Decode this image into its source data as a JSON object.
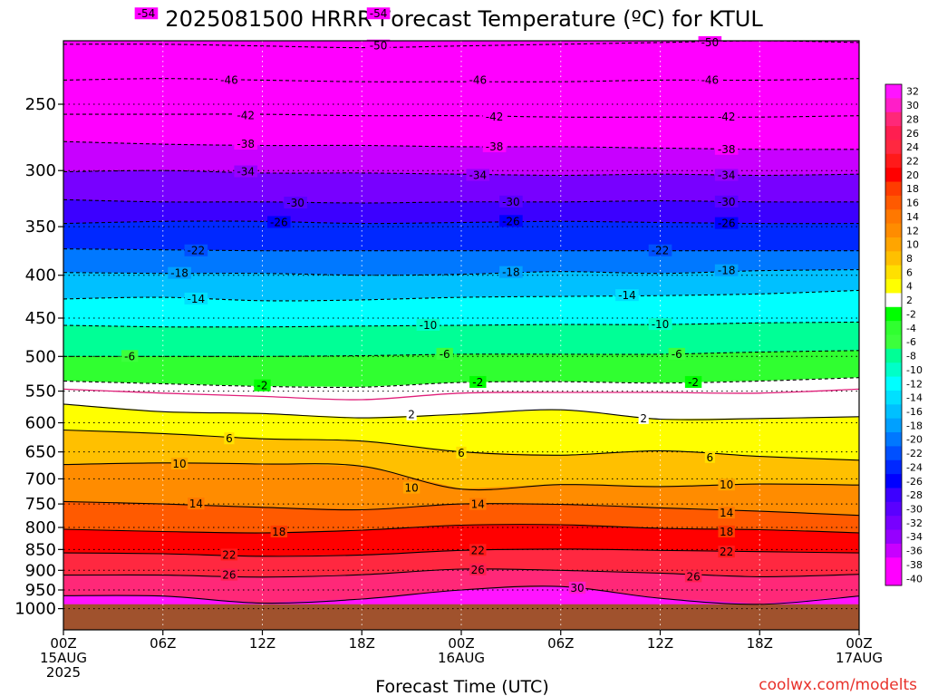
{
  "title": "2025081500 HRRR Forecast Temperature (ºC) for KTUL",
  "credit": "coolwx.com/modelts",
  "colors": {
    "credit": "#e8322b",
    "ground": "#a0522d",
    "freezing_line": "#e0207a"
  },
  "chart_data": {
    "type": "heatmap",
    "title": "2025081500 HRRR Forecast Temperature (ºC) for KTUL",
    "xlabel": "Forecast Time (UTC)",
    "ylabel": "",
    "x_hours": [
      0,
      6,
      12,
      18,
      24,
      30,
      36,
      42,
      48
    ],
    "x_tick_labels": [
      {
        "h": 0,
        "lines": [
          "00Z",
          "15AUG",
          "2025"
        ]
      },
      {
        "h": 6,
        "lines": [
          "06Z"
        ]
      },
      {
        "h": 12,
        "lines": [
          "12Z"
        ]
      },
      {
        "h": 18,
        "lines": [
          "18Z"
        ]
      },
      {
        "h": 24,
        "lines": [
          "00Z",
          "16AUG"
        ]
      },
      {
        "h": 30,
        "lines": [
          "06Z"
        ]
      },
      {
        "h": 36,
        "lines": [
          "12Z"
        ]
      },
      {
        "h": 42,
        "lines": [
          "18Z"
        ]
      },
      {
        "h": 48,
        "lines": [
          "00Z",
          "17AUG"
        ]
      }
    ],
    "y_pressure_hPa": [
      250,
      300,
      350,
      400,
      450,
      500,
      550,
      600,
      650,
      700,
      750,
      800,
      850,
      900,
      950,
      1000
    ],
    "y_axis_log": true,
    "surface_pressure_hPa": 988,
    "temperature_levels": [
      {
        "t": -54,
        "p": [
          195,
          195,
          195,
          195,
          195,
          195,
          195,
          195,
          195
        ]
      },
      {
        "t": -50,
        "p": [
          212,
          212,
          213,
          214,
          213,
          212,
          211,
          210,
          211
        ]
      },
      {
        "t": -46,
        "p": [
          234,
          233,
          234,
          235,
          235,
          235,
          234,
          234,
          233
        ]
      },
      {
        "t": -42,
        "p": [
          257,
          257,
          257,
          258,
          258,
          259,
          259,
          259,
          258
        ]
      },
      {
        "t": -38,
        "p": [
          277,
          279,
          280,
          280,
          281,
          281,
          282,
          283,
          283
        ]
      },
      {
        "t": -34,
        "p": [
          301,
          300,
          302,
          302,
          303,
          304,
          303,
          304,
          303
        ]
      },
      {
        "t": -30,
        "p": [
          325,
          327,
          327,
          328,
          327,
          327,
          326,
          327,
          327
        ]
      },
      {
        "t": -26,
        "p": [
          347,
          345,
          345,
          347,
          346,
          345,
          346,
          347,
          347
        ]
      },
      {
        "t": -22,
        "p": [
          372,
          373,
          374,
          374,
          374,
          374,
          374,
          374,
          374
        ]
      },
      {
        "t": -18,
        "p": [
          397,
          398,
          398,
          400,
          399,
          396,
          398,
          395,
          394
        ]
      },
      {
        "t": -14,
        "p": [
          427,
          425,
          429,
          428,
          425,
          424,
          423,
          421,
          417
        ]
      },
      {
        "t": -10,
        "p": [
          459,
          461,
          461,
          460,
          459,
          458,
          458,
          456,
          455
        ]
      },
      {
        "t": -6,
        "p": [
          500,
          500,
          500,
          499,
          497,
          497,
          497,
          494,
          492
        ]
      },
      {
        "t": -2,
        "p": [
          535,
          539,
          543,
          544,
          537,
          536,
          538,
          535,
          530
        ]
      },
      {
        "t": 2,
        "p": [
          570,
          582,
          585,
          592,
          586,
          579,
          594,
          593,
          590
        ]
      },
      {
        "t": 6,
        "p": [
          612,
          618,
          627,
          631,
          650,
          656,
          648,
          658,
          665
        ]
      },
      {
        "t": 10,
        "p": [
          673,
          670,
          672,
          676,
          720,
          711,
          715,
          710,
          712
        ]
      },
      {
        "t": 14,
        "p": [
          745,
          750,
          757,
          762,
          750,
          751,
          758,
          765,
          774
        ]
      },
      {
        "t": 18,
        "p": [
          804,
          809,
          812,
          806,
          795,
          794,
          802,
          805,
          812
        ]
      },
      {
        "t": 22,
        "p": [
          858,
          860,
          866,
          863,
          852,
          849,
          852,
          855,
          858
        ]
      },
      {
        "t": 26,
        "p": [
          912,
          912,
          917,
          911,
          897,
          900,
          907,
          916,
          910
        ]
      },
      {
        "t": 30,
        "p": [
          965,
          966,
          985,
          974,
          950,
          941,
          972,
          988,
          966
        ]
      },
      {
        "t": 34,
        "p": [
          988,
          988,
          988,
          988,
          988,
          988,
          988,
          988,
          988
        ]
      }
    ],
    "contour_labels": [
      {
        "t": -54,
        "at": [
          [
            5,
            195
          ],
          [
            19,
            195
          ]
        ]
      },
      {
        "t": -50,
        "at": [
          [
            19,
            213
          ],
          [
            39,
            211
          ]
        ]
      },
      {
        "t": -46,
        "at": [
          [
            10,
            234
          ],
          [
            25,
            234
          ],
          [
            39,
            234
          ]
        ]
      },
      {
        "t": -42,
        "at": [
          [
            11,
            258
          ],
          [
            26,
            259
          ],
          [
            40,
            259
          ]
        ]
      },
      {
        "t": -38,
        "at": [
          [
            11,
            279
          ],
          [
            26,
            281
          ],
          [
            40,
            283
          ]
        ]
      },
      {
        "t": -34,
        "at": [
          [
            11,
            301
          ],
          [
            25,
            304
          ],
          [
            40,
            304
          ]
        ]
      },
      {
        "t": -30,
        "at": [
          [
            14,
            328
          ],
          [
            27,
            327
          ],
          [
            40,
            327
          ]
        ]
      },
      {
        "t": -26,
        "at": [
          [
            13,
            346
          ],
          [
            27,
            345
          ],
          [
            40,
            347
          ]
        ]
      },
      {
        "t": -22,
        "at": [
          [
            8,
            374
          ],
          [
            36,
            374
          ]
        ]
      },
      {
        "t": -18,
        "at": [
          [
            7,
            398
          ],
          [
            27,
            397
          ],
          [
            40,
            395
          ]
        ]
      },
      {
        "t": -14,
        "at": [
          [
            8,
            427
          ],
          [
            34,
            423
          ]
        ]
      },
      {
        "t": -10,
        "at": [
          [
            22,
            459
          ],
          [
            36,
            458
          ]
        ]
      },
      {
        "t": -6,
        "at": [
          [
            4,
            500
          ],
          [
            23,
            497
          ],
          [
            37,
            497
          ]
        ]
      },
      {
        "t": -2,
        "at": [
          [
            12,
            542
          ],
          [
            25,
            537
          ],
          [
            38,
            537
          ]
        ]
      },
      {
        "t": 2,
        "at": [
          [
            21,
            587
          ],
          [
            35,
            593
          ]
        ]
      },
      {
        "t": 6,
        "at": [
          [
            10,
            627
          ],
          [
            24,
            652
          ],
          [
            39,
            660
          ]
        ]
      },
      {
        "t": 10,
        "at": [
          [
            7,
            672
          ],
          [
            21,
            718
          ],
          [
            40,
            712
          ]
        ]
      },
      {
        "t": 14,
        "at": [
          [
            8,
            750
          ],
          [
            25,
            751
          ],
          [
            40,
            769
          ]
        ]
      },
      {
        "t": 18,
        "at": [
          [
            13,
            810
          ],
          [
            40,
            810
          ]
        ]
      },
      {
        "t": 22,
        "at": [
          [
            10,
            863
          ],
          [
            25,
            852
          ],
          [
            40,
            856
          ]
        ]
      },
      {
        "t": 26,
        "at": [
          [
            10,
            912
          ],
          [
            25,
            899
          ],
          [
            38,
            916
          ]
        ]
      },
      {
        "t": 30,
        "at": [
          [
            31,
            945
          ]
        ]
      }
    ],
    "freezing_line_p": [
      547,
      553,
      558,
      563,
      553,
      552,
      552,
      553,
      547
    ],
    "colorbar_levels": [
      32,
      30,
      28,
      26,
      24,
      22,
      20,
      18,
      16,
      14,
      12,
      10,
      8,
      6,
      4,
      2,
      -2,
      -4,
      -6,
      -8,
      -10,
      -12,
      -14,
      -16,
      -18,
      -20,
      -22,
      -24,
      -26,
      -28,
      -30,
      -32,
      -34,
      -36,
      -38,
      -40
    ],
    "colorbar_colors": [
      "#ff14ff",
      "#ff1ec8",
      "#ff2878",
      "#ff1e50",
      "#ff2840",
      "#ff1a1a",
      "#ff0000",
      "#ff3c00",
      "#ff5a00",
      "#ff7800",
      "#ff8c00",
      "#ffa500",
      "#ffc000",
      "#ffe000",
      "#ffff00",
      "#ffffff",
      "#00ff00",
      "#30ff30",
      "#3cff3c",
      "#00ff96",
      "#00ffc8",
      "#00ffff",
      "#00e0ff",
      "#00c0ff",
      "#00a0ff",
      "#0078ff",
      "#0050ff",
      "#0028ff",
      "#0000ff",
      "#3c00ff",
      "#5a00ff",
      "#7800ff",
      "#9600ff",
      "#c800ff",
      "#ff00ff",
      "#ff00ff"
    ]
  }
}
